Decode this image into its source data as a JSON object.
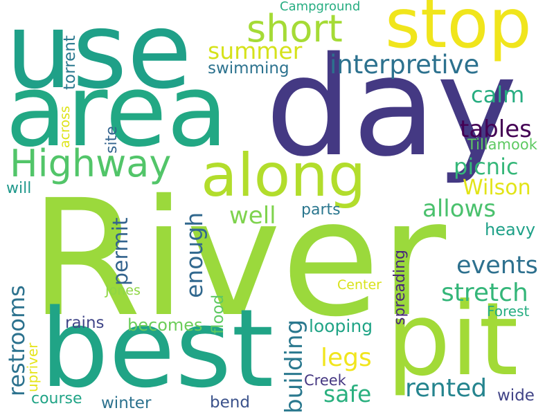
{
  "cloud": {
    "palette": "viridis",
    "words": [
      {
        "text": "River",
        "color": "#9bd93c",
        "orientation": "horizontal"
      },
      {
        "text": "use",
        "color": "#1fa088",
        "orientation": "horizontal"
      },
      {
        "text": "area",
        "color": "#22a884",
        "orientation": "horizontal"
      },
      {
        "text": "day",
        "color": "#443983",
        "orientation": "horizontal"
      },
      {
        "text": "stop",
        "color": "#f0e51c",
        "orientation": "horizontal"
      },
      {
        "text": "best",
        "color": "#20a486",
        "orientation": "horizontal"
      },
      {
        "text": "pit",
        "color": "#a2da37",
        "orientation": "horizontal"
      },
      {
        "text": "along",
        "color": "#b2dd2c",
        "orientation": "horizontal"
      },
      {
        "text": "short",
        "color": "#a5db36",
        "orientation": "horizontal"
      },
      {
        "text": "Highway",
        "color": "#52c569",
        "orientation": "horizontal"
      },
      {
        "text": "summer",
        "color": "#d5e21a",
        "orientation": "horizontal"
      },
      {
        "text": "swimming",
        "color": "#2c728e",
        "orientation": "horizontal"
      },
      {
        "text": "interpretive",
        "color": "#2c718e",
        "orientation": "horizontal"
      },
      {
        "text": "Campground",
        "color": "#26ad81",
        "orientation": "horizontal"
      },
      {
        "text": "torrent",
        "color": "#2a788e",
        "orientation": "vertical"
      },
      {
        "text": "across",
        "color": "#dde318",
        "orientation": "vertical"
      },
      {
        "text": "site",
        "color": "#33638d",
        "orientation": "vertical"
      },
      {
        "text": "calm",
        "color": "#27ad81",
        "orientation": "horizontal"
      },
      {
        "text": "tables",
        "color": "#440154",
        "orientation": "horizontal"
      },
      {
        "text": "Tillamook",
        "color": "#5ec962",
        "orientation": "horizontal"
      },
      {
        "text": "picnic",
        "color": "#35b779",
        "orientation": "horizontal"
      },
      {
        "text": "Wilson",
        "color": "#e2e418",
        "orientation": "horizontal"
      },
      {
        "text": "will",
        "color": "#1f988b",
        "orientation": "horizontal"
      },
      {
        "text": "parts",
        "color": "#2a768e",
        "orientation": "horizontal"
      },
      {
        "text": "allows",
        "color": "#4ac16d",
        "orientation": "horizontal"
      },
      {
        "text": "well",
        "color": "#7fd34e",
        "orientation": "horizontal"
      },
      {
        "text": "permit",
        "color": "#33638d",
        "orientation": "vertical"
      },
      {
        "text": "enough",
        "color": "#31688e",
        "orientation": "vertical"
      },
      {
        "text": "heavy",
        "color": "#1fa188",
        "orientation": "horizontal"
      },
      {
        "text": "restrooms",
        "color": "#2c728e",
        "orientation": "vertical"
      },
      {
        "text": "events",
        "color": "#2d708e",
        "orientation": "horizontal"
      },
      {
        "text": "stretch",
        "color": "#34b679",
        "orientation": "horizontal"
      },
      {
        "text": "spreading",
        "color": "#482878",
        "orientation": "vertical"
      },
      {
        "text": "Center",
        "color": "#d8e219",
        "orientation": "horizontal"
      },
      {
        "text": "Forest",
        "color": "#26ad81",
        "orientation": "horizontal"
      },
      {
        "text": "Jones",
        "color": "#8ed645",
        "orientation": "horizontal"
      },
      {
        "text": "flood",
        "color": "#5ec962",
        "orientation": "vertical"
      },
      {
        "text": "building",
        "color": "#2a788e",
        "orientation": "vertical"
      },
      {
        "text": "rains",
        "color": "#404688",
        "orientation": "horizontal"
      },
      {
        "text": "becomes",
        "color": "#6ccd5a",
        "orientation": "horizontal"
      },
      {
        "text": "looping",
        "color": "#20a486",
        "orientation": "horizontal"
      },
      {
        "text": "legs",
        "color": "#f1e51d",
        "orientation": "horizontal"
      },
      {
        "text": "upriver",
        "color": "#e5e419",
        "orientation": "vertical"
      },
      {
        "text": "safe",
        "color": "#2ab07f",
        "orientation": "horizontal"
      },
      {
        "text": "rented",
        "color": "#25848e",
        "orientation": "horizontal"
      },
      {
        "text": "Creek",
        "color": "#453781",
        "orientation": "horizontal"
      },
      {
        "text": "course",
        "color": "#20a486",
        "orientation": "horizontal"
      },
      {
        "text": "winter",
        "color": "#2c728e",
        "orientation": "horizontal"
      },
      {
        "text": "bend",
        "color": "#3b528b",
        "orientation": "horizontal"
      },
      {
        "text": "wide",
        "color": "#414487",
        "orientation": "horizontal"
      }
    ]
  }
}
